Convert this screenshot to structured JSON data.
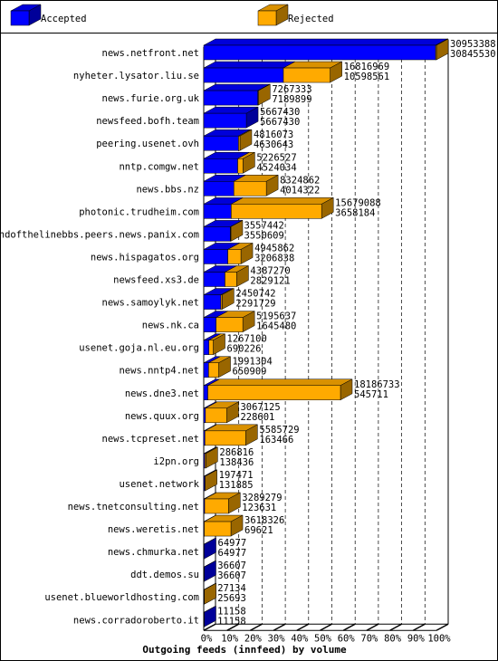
{
  "chart_data": {
    "type": "bar3d-range",
    "title": "Outgoing feeds (innfeed) by volume",
    "legend": [
      {
        "name": "Accepted",
        "color": "#0000ff"
      },
      {
        "name": "Rejected",
        "color": "#ffaa00"
      }
    ],
    "categories": [
      "news.netfront.net",
      "nyheter.lysator.liu.se",
      "news.furie.org.uk",
      "newsfeed.bofh.team",
      "peering.usenet.ovh",
      "nntp.comgw.net",
      "news.bbs.nz",
      "photonic.trudheim.com",
      "endofthelinebbs.peers.news.panix.com",
      "news.hispagatos.org",
      "newsfeed.xs3.de",
      "news.samoylyk.net",
      "news.nk.ca",
      "usenet.goja.nl.eu.org",
      "news.nntp4.net",
      "news.dne3.net",
      "news.quux.org",
      "news.tcpreset.net",
      "i2pn.org",
      "usenet.network",
      "news.tnetconsulting.net",
      "news.weretis.net",
      "news.chmurka.net",
      "ddt.demos.su",
      "usenet.blueworldhosting.com",
      "news.corradoroberto.it"
    ],
    "offered": [
      30953388,
      16816969,
      7267333,
      5667430,
      4816073,
      5226527,
      8324862,
      15679088,
      3557442,
      4945862,
      4387270,
      2450742,
      5195637,
      1267100,
      1991304,
      18186733,
      3067125,
      5585729,
      286816,
      197471,
      3289279,
      3618326,
      64977,
      36607,
      27134,
      11158
    ],
    "accepted": [
      30845530,
      10598561,
      7189899,
      5667430,
      4630643,
      4524034,
      4014322,
      3658184,
      3550609,
      3206838,
      2829121,
      2291729,
      1645480,
      690226,
      650909,
      545711,
      228601,
      163466,
      138436,
      131885,
      123631,
      69621,
      64977,
      36607,
      25693,
      11158
    ],
    "xlim": [
      0,
      30953388
    ],
    "xticks": [
      {
        "value": 0,
        "label": "0%"
      },
      {
        "value": 3095338.8,
        "label": "10%"
      },
      {
        "value": 6190677.6,
        "label": "20%"
      },
      {
        "value": 9286016.4,
        "label": "30%"
      },
      {
        "value": 12381355.2,
        "label": "40%"
      },
      {
        "value": 15476694,
        "label": "50%"
      },
      {
        "value": 18572032.8,
        "label": "60%"
      },
      {
        "value": 21667371.6,
        "label": "70%"
      },
      {
        "value": 24762710.4,
        "label": "80%"
      },
      {
        "value": 27858049.2,
        "label": "90%"
      },
      {
        "value": 30953388,
        "label": "100%"
      }
    ],
    "grid": true
  }
}
